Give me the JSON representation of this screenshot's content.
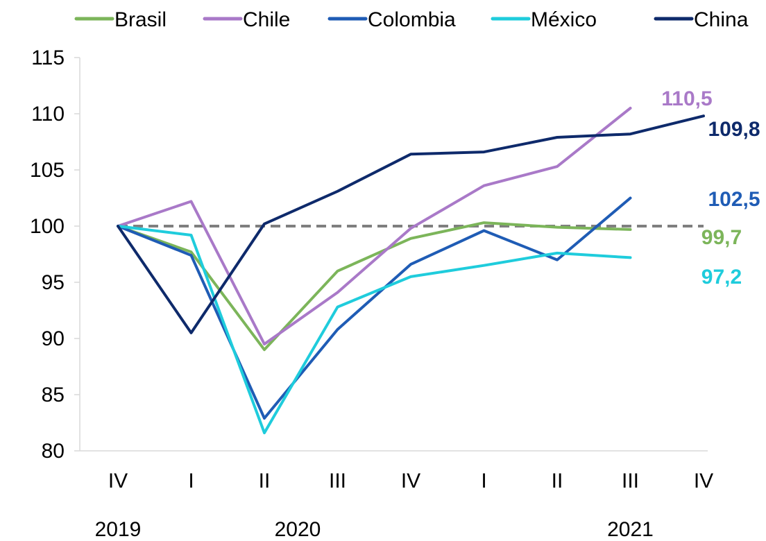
{
  "chart_data": {
    "type": "line",
    "categories": [
      "IV",
      "I",
      "II",
      "III",
      "IV",
      "I",
      "II",
      "III",
      "IV"
    ],
    "year_labels": [
      "2019",
      "2020",
      "2021"
    ],
    "year_positions": [
      0,
      2,
      7
    ],
    "ylim": [
      80,
      115
    ],
    "yticks": [
      80,
      85,
      90,
      95,
      100,
      105,
      110,
      115
    ],
    "reference_line": 100,
    "legend_position": "top",
    "series": [
      {
        "name": "Brasil",
        "color": "#7cb55a",
        "values": [
          100,
          97.7,
          89.0,
          96.0,
          98.9,
          100.3,
          99.9,
          99.7,
          null
        ],
        "end_label": "99,7"
      },
      {
        "name": "Chile",
        "color": "#a979c8",
        "values": [
          100,
          102.2,
          89.5,
          94.1,
          99.8,
          103.6,
          105.3,
          110.5,
          null
        ],
        "end_label": "110,5"
      },
      {
        "name": "Colombia",
        "color": "#1f5cb5",
        "values": [
          100,
          97.4,
          82.9,
          90.8,
          96.6,
          99.6,
          97.0,
          102.5,
          null
        ],
        "end_label": "102,5"
      },
      {
        "name": "México",
        "color": "#1fccdc",
        "values": [
          100,
          99.2,
          81.6,
          92.8,
          95.5,
          96.5,
          97.6,
          97.2,
          null
        ],
        "end_label": "97,2"
      },
      {
        "name": "China",
        "color": "#0e2a6b",
        "values": [
          100,
          90.5,
          100.2,
          103.1,
          106.4,
          106.6,
          107.9,
          108.2,
          109.8
        ],
        "end_label": "109,8"
      }
    ]
  }
}
